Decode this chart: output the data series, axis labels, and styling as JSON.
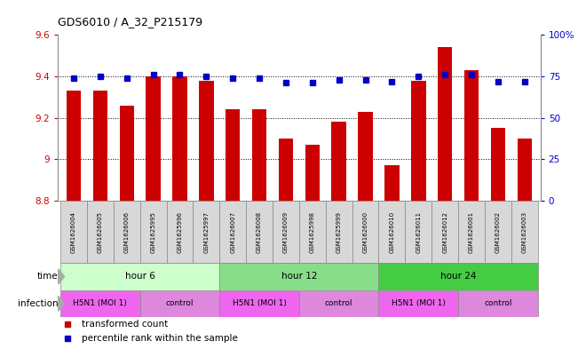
{
  "title": "GDS6010 / A_32_P215179",
  "samples": [
    "GSM1626004",
    "GSM1626005",
    "GSM1626006",
    "GSM1625995",
    "GSM1625996",
    "GSM1625997",
    "GSM1626007",
    "GSM1626008",
    "GSM1626009",
    "GSM1625998",
    "GSM1625999",
    "GSM1626000",
    "GSM1626010",
    "GSM1626011",
    "GSM1626012",
    "GSM1626001",
    "GSM1626002",
    "GSM1626003"
  ],
  "red_values": [
    9.33,
    9.33,
    9.26,
    9.4,
    9.4,
    9.38,
    9.24,
    9.24,
    9.1,
    9.07,
    9.18,
    9.23,
    8.97,
    9.38,
    9.54,
    9.43,
    9.15,
    9.1
  ],
  "blue_values": [
    74,
    75,
    74,
    76,
    76,
    75,
    74,
    74,
    71,
    71,
    73,
    73,
    72,
    75,
    76,
    76,
    72,
    72
  ],
  "ylim_left": [
    8.8,
    9.6
  ],
  "ylim_right": [
    0,
    100
  ],
  "yticks_left": [
    8.8,
    9.0,
    9.2,
    9.4,
    9.6
  ],
  "ytick_labels_left": [
    "8.8",
    "9",
    "9.2",
    "9.4",
    "9.6"
  ],
  "yticks_right": [
    0,
    25,
    50,
    75,
    100
  ],
  "ytick_labels_right": [
    "0",
    "25",
    "50",
    "75",
    "100%"
  ],
  "bar_color": "#cc0000",
  "dot_color": "#0000cc",
  "grid_color": "#000000",
  "time_groups": [
    {
      "label": "hour 6",
      "start": 0,
      "end": 6,
      "color": "#ccffcc"
    },
    {
      "label": "hour 12",
      "start": 6,
      "end": 12,
      "color": "#88dd88"
    },
    {
      "label": "hour 24",
      "start": 12,
      "end": 18,
      "color": "#44cc44"
    }
  ],
  "infection_groups": [
    {
      "label": "H5N1 (MOI 1)",
      "start": 0,
      "end": 3,
      "color": "#ee66ee"
    },
    {
      "label": "control",
      "start": 3,
      "end": 6,
      "color": "#dd88dd"
    },
    {
      "label": "H5N1 (MOI 1)",
      "start": 6,
      "end": 9,
      "color": "#ee66ee"
    },
    {
      "label": "control",
      "start": 9,
      "end": 12,
      "color": "#dd88dd"
    },
    {
      "label": "H5N1 (MOI 1)",
      "start": 12,
      "end": 15,
      "color": "#ee66ee"
    },
    {
      "label": "control",
      "start": 15,
      "end": 18,
      "color": "#dd88dd"
    }
  ],
  "time_label": "time",
  "infection_label": "infection",
  "legend_red": "transformed count",
  "legend_blue": "percentile rank within the sample",
  "bar_width": 0.55,
  "background_color": "#ffffff",
  "plot_bg": "#ffffff",
  "sample_box_color": "#d8d8d8",
  "axis_label_color_left": "#cc0000",
  "axis_label_color_right": "#0000cc",
  "label_arrow_color": "#aaaaaa"
}
